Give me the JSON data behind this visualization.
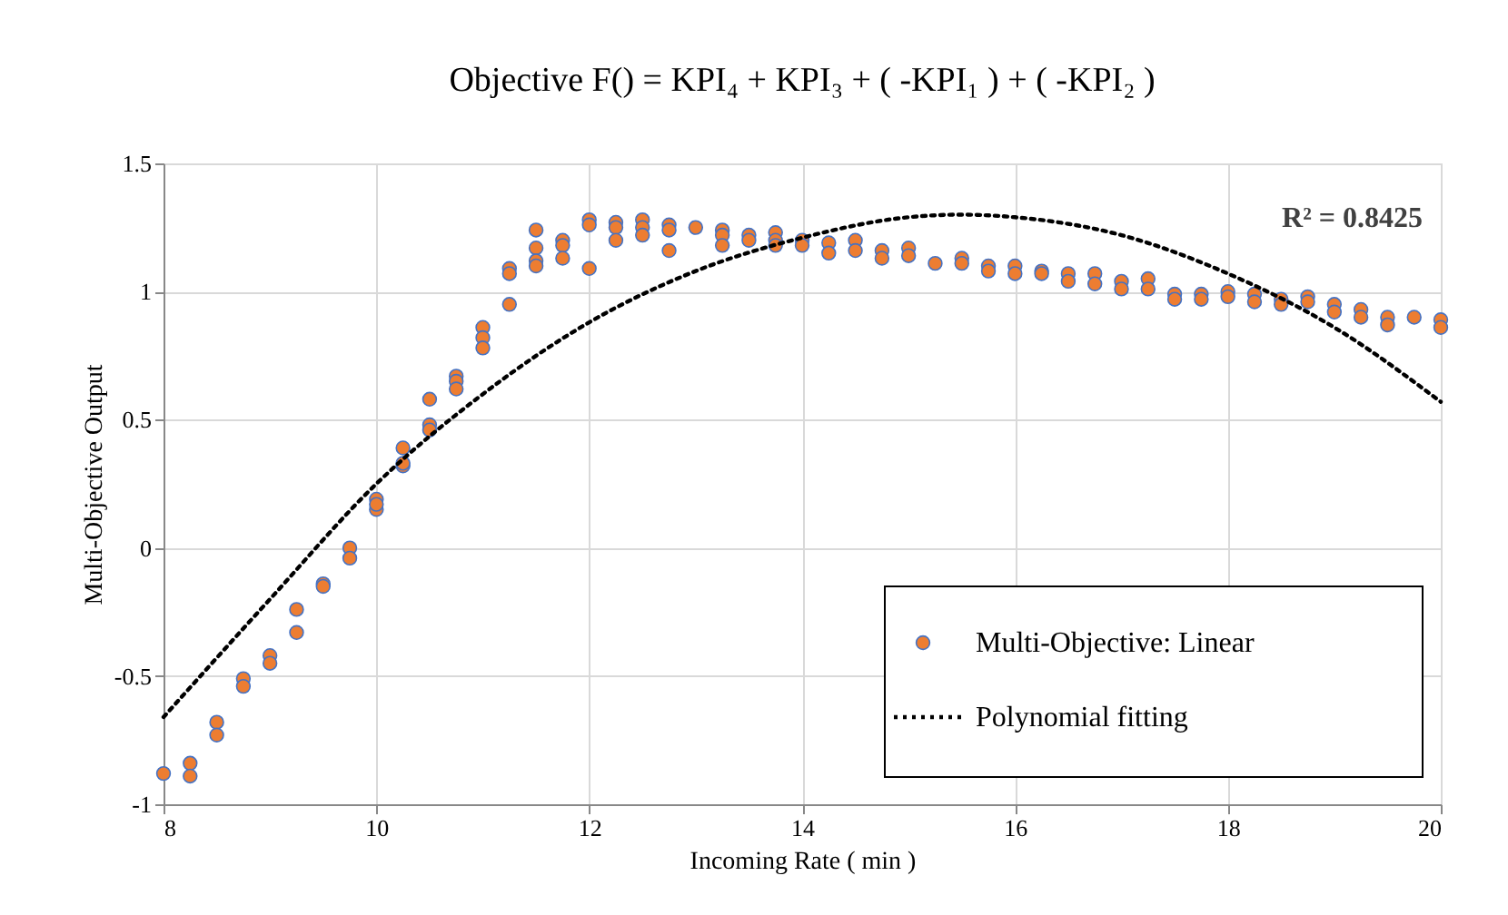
{
  "chart_data": {
    "type": "scatter",
    "title": "Objective  F() = KPI₄ + KPI₃  + ( -KPI₁ ) + ( -KPI₂ )",
    "xlabel": "Incoming Rate ( min )",
    "ylabel": "Multi-Objective Output",
    "xlim": [
      8,
      20
    ],
    "xticks": [
      8,
      10,
      12,
      14,
      16,
      18,
      20
    ],
    "ylim": [
      -1,
      1.5
    ],
    "yticks": [
      {
        "value": -1,
        "label": "-1"
      },
      -0.5,
      0,
      0.5,
      1,
      1.5
    ],
    "grid": true,
    "legend": "bottom right",
    "annotations": [
      "R² = 0.8425"
    ],
    "series": [
      {
        "name": "Multi-Objective: Linear",
        "marker": "circle",
        "color": "#ed7d31",
        "x": [
          8,
          8.25,
          8.25,
          8.5,
          8.5,
          8.75,
          8.75,
          9,
          9,
          9.25,
          9.25,
          9.5,
          9.5,
          9.75,
          9.75,
          10,
          10,
          10,
          10.25,
          10.25,
          10.25,
          10.5,
          10.5,
          10.5,
          10.75,
          10.75,
          10.75,
          11,
          11,
          11,
          11.25,
          11.25,
          11.25,
          11.5,
          11.5,
          11.5,
          11.5,
          11.75,
          11.75,
          11.75,
          12,
          12,
          12,
          12.25,
          12.25,
          12.25,
          12.5,
          12.5,
          12.5,
          12.75,
          12.75,
          12.75,
          13,
          13.25,
          13.25,
          13.25,
          13.5,
          13.5,
          13.75,
          13.75,
          13.75,
          14,
          14,
          14.25,
          14.25,
          14.5,
          14.5,
          14.75,
          14.75,
          15,
          15,
          15.25,
          15.5,
          15.5,
          15.75,
          15.75,
          16,
          16,
          16.25,
          16.25,
          16.5,
          16.5,
          16.75,
          16.75,
          17,
          17,
          17.25,
          17.25,
          17.5,
          17.5,
          17.75,
          17.75,
          18,
          18,
          18.25,
          18.25,
          18.5,
          18.5,
          18.75,
          18.75,
          19,
          19,
          19.25,
          19.25,
          19.5,
          19.5,
          19.75,
          20,
          20
        ],
        "values": [
          -0.88,
          -0.84,
          -0.89,
          -0.68,
          -0.73,
          -0.51,
          -0.54,
          -0.42,
          -0.45,
          -0.24,
          -0.33,
          -0.14,
          -0.15,
          0.0,
          -0.04,
          0.19,
          0.15,
          0.17,
          0.39,
          0.32,
          0.33,
          0.58,
          0.48,
          0.46,
          0.67,
          0.65,
          0.62,
          0.86,
          0.82,
          0.78,
          1.09,
          1.07,
          0.95,
          1.24,
          1.17,
          1.12,
          1.1,
          1.2,
          1.18,
          1.13,
          1.28,
          1.26,
          1.09,
          1.27,
          1.25,
          1.2,
          1.28,
          1.25,
          1.22,
          1.26,
          1.24,
          1.16,
          1.25,
          1.24,
          1.22,
          1.18,
          1.22,
          1.2,
          1.23,
          1.2,
          1.18,
          1.2,
          1.18,
          1.19,
          1.15,
          1.2,
          1.16,
          1.16,
          1.13,
          1.17,
          1.14,
          1.11,
          1.13,
          1.11,
          1.1,
          1.08,
          1.1,
          1.07,
          1.08,
          1.07,
          1.07,
          1.04,
          1.07,
          1.03,
          1.04,
          1.01,
          1.05,
          1.01,
          0.99,
          0.97,
          0.99,
          0.97,
          1.0,
          0.98,
          0.99,
          0.96,
          0.97,
          0.95,
          0.98,
          0.96,
          0.95,
          0.92,
          0.93,
          0.9,
          0.9,
          0.87,
          0.9,
          0.89,
          0.86
        ]
      },
      {
        "name": "Polynomial fitting",
        "type": "line",
        "line_style": "dotted",
        "marker": "none",
        "color": "#000000",
        "x": [
          8,
          9,
          10,
          11,
          12,
          13,
          14,
          15,
          15.5,
          16,
          17,
          18,
          19,
          20
        ],
        "values": [
          -0.66,
          -0.2,
          0.25,
          0.6,
          0.88,
          1.08,
          1.21,
          1.29,
          1.3,
          1.29,
          1.22,
          1.07,
          0.86,
          0.57
        ]
      }
    ]
  }
}
